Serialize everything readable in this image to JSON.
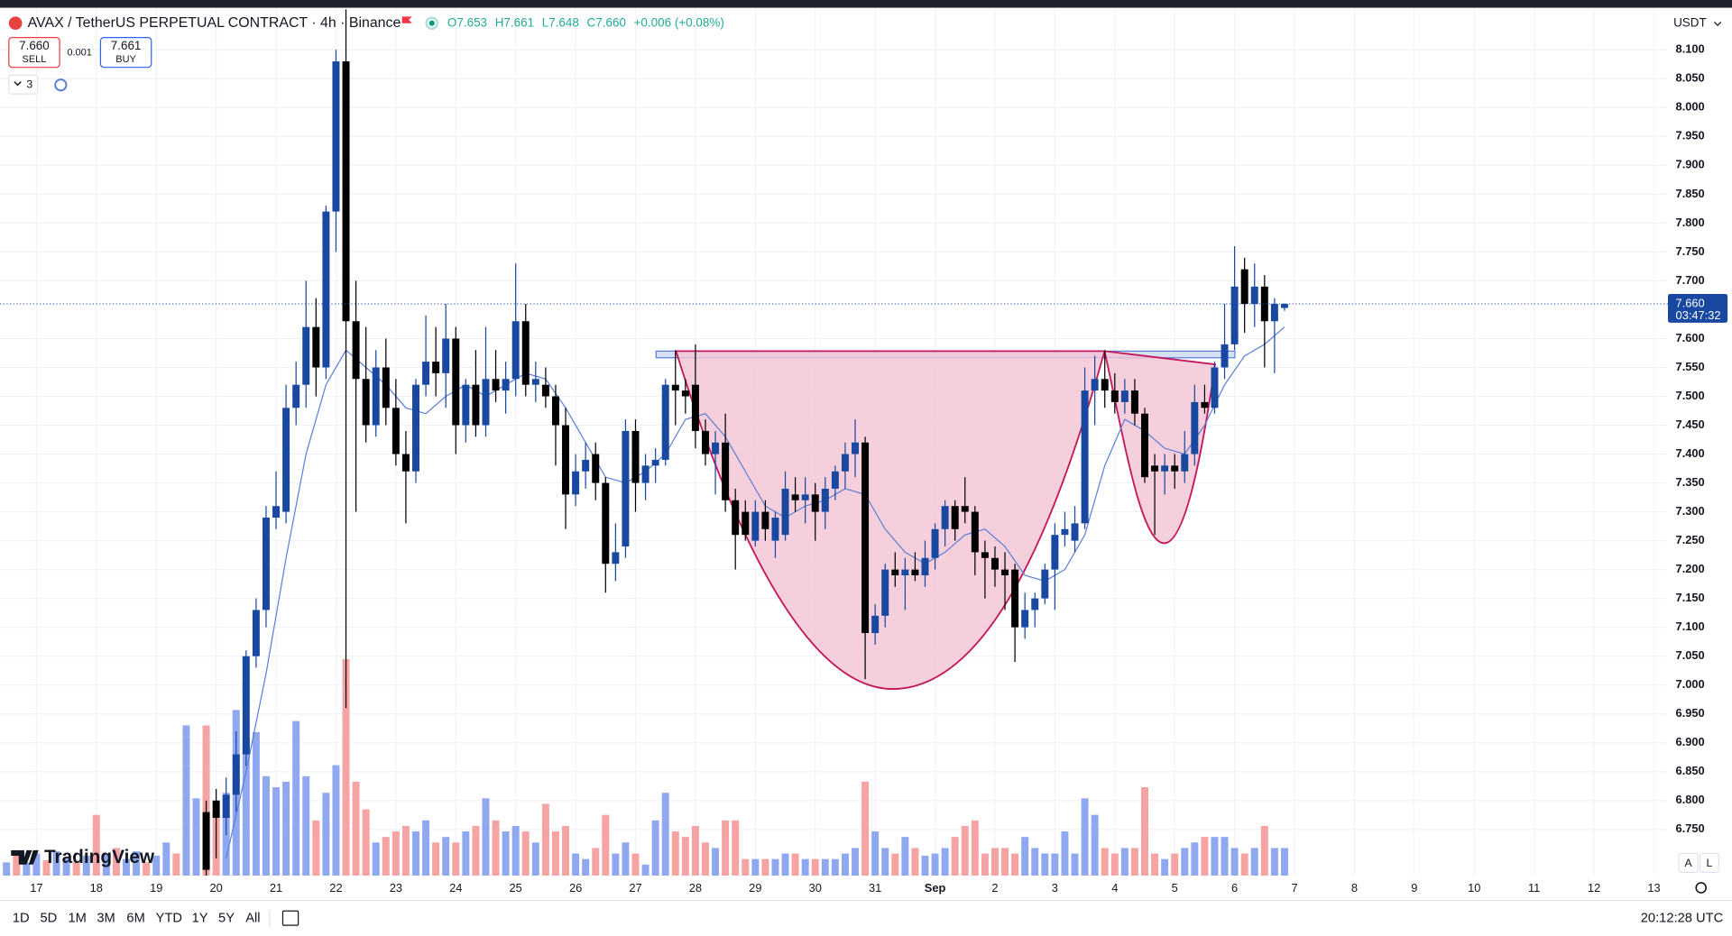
{
  "header": {
    "title": "AVAX / TetherUS PERPETUAL CONTRACT · 4h · Binance",
    "ohlc": [
      "O7.653",
      "H7.661",
      "L7.648",
      "C7.660",
      "+0.006 (+0.08%)"
    ],
    "sell_price": "7.660",
    "sell": "SELL",
    "spread": "0.001",
    "buy_price": "7.661",
    "buy": "BUY",
    "indicators": "3",
    "currency": "USDT",
    "logo": "TradingView",
    "scale_buttons": [
      "A",
      "L"
    ]
  },
  "toolbar": {
    "ranges": [
      "1D",
      "5D",
      "1M",
      "3M",
      "6M",
      "YTD",
      "1Y",
      "5Y",
      "All"
    ],
    "clock": "20:12:28 UTC"
  },
  "chart_data": {
    "type": "candlestick",
    "up_color": "#1848a0",
    "down_color": "#000000",
    "xlim": [
      -3.65,
      163.4
    ],
    "ylim": [
      6.67,
      8.171
    ],
    "grid": true,
    "xticks": [
      {
        "value": 0,
        "label": "17"
      },
      {
        "value": 6,
        "label": "18"
      },
      {
        "value": 12,
        "label": "19"
      },
      {
        "value": 18,
        "label": "20"
      },
      {
        "value": 24,
        "label": "21"
      },
      {
        "value": 30,
        "label": "22"
      },
      {
        "value": 36,
        "label": "23"
      },
      {
        "value": 42,
        "label": "24"
      },
      {
        "value": 48,
        "label": "25"
      },
      {
        "value": 54,
        "label": "26"
      },
      {
        "value": 60,
        "label": "27"
      },
      {
        "value": 66,
        "label": "28"
      },
      {
        "value": 72,
        "label": "29"
      },
      {
        "value": 78,
        "label": "30"
      },
      {
        "value": 84,
        "label": "31"
      },
      {
        "value": 90,
        "label": "Sep"
      },
      {
        "value": 96,
        "label": "2"
      },
      {
        "value": 102,
        "label": "3"
      },
      {
        "value": 108,
        "label": "4"
      },
      {
        "value": 114,
        "label": "5"
      },
      {
        "value": 120,
        "label": "6"
      },
      {
        "value": 126,
        "label": "7"
      },
      {
        "value": 132,
        "label": "8"
      },
      {
        "value": 138,
        "label": "9"
      },
      {
        "value": 144,
        "label": "10"
      },
      {
        "value": 150,
        "label": "11"
      },
      {
        "value": 156,
        "label": "12"
      },
      {
        "value": 162,
        "label": "13"
      }
    ],
    "yticks": [
      {
        "value": 8.1,
        "label": "8.100"
      },
      {
        "value": 8.05,
        "label": "8.050"
      },
      {
        "value": 8.0,
        "label": "8.000"
      },
      {
        "value": 7.95,
        "label": "7.950"
      },
      {
        "value": 7.9,
        "label": "7.900"
      },
      {
        "value": 7.85,
        "label": "7.850"
      },
      {
        "value": 7.8,
        "label": "7.800"
      },
      {
        "value": 7.75,
        "label": "7.750"
      },
      {
        "value": 7.7,
        "label": "7.700"
      },
      {
        "value": 7.6,
        "label": "7.600"
      },
      {
        "value": 7.55,
        "label": "7.550"
      },
      {
        "value": 7.5,
        "label": "7.500"
      },
      {
        "value": 7.45,
        "label": "7.450"
      },
      {
        "value": 7.4,
        "label": "7.400"
      },
      {
        "value": 7.35,
        "label": "7.350"
      },
      {
        "value": 7.3,
        "label": "7.300"
      },
      {
        "value": 7.25,
        "label": "7.250"
      },
      {
        "value": 7.2,
        "label": "7.200"
      },
      {
        "value": 7.15,
        "label": "7.150"
      },
      {
        "value": 7.1,
        "label": "7.100"
      },
      {
        "value": 7.05,
        "label": "7.050"
      },
      {
        "value": 7.0,
        "label": "7.000"
      },
      {
        "value": 6.95,
        "label": "6.950"
      },
      {
        "value": 6.9,
        "label": "6.900"
      },
      {
        "value": 6.85,
        "label": "6.850"
      },
      {
        "value": 6.8,
        "label": "6.800"
      },
      {
        "value": 6.75,
        "label": "6.750"
      }
    ],
    "last_price": {
      "value": 7.66,
      "label": "7.660"
    },
    "countdown": "03:47:32",
    "x": [
      17,
      18,
      19,
      20,
      21,
      22,
      23,
      24,
      25,
      26,
      27,
      28,
      29,
      30,
      31,
      32,
      33,
      34,
      35,
      36,
      37,
      38,
      39,
      40,
      41,
      42,
      43,
      44,
      45,
      46,
      47,
      48,
      49,
      50,
      51,
      52,
      53,
      54,
      55,
      56,
      57,
      58,
      59,
      60,
      61,
      62,
      63,
      64,
      65,
      66,
      67,
      68,
      69,
      70,
      71,
      72,
      73,
      74,
      75,
      76,
      77,
      78,
      79,
      80,
      81,
      82,
      83,
      84,
      85,
      86,
      87,
      88,
      89,
      90,
      91,
      92,
      93,
      94,
      95,
      96,
      97,
      98,
      99,
      100,
      101,
      102,
      103,
      104,
      105,
      106,
      107,
      108,
      109,
      110,
      111,
      112,
      113,
      114,
      115,
      116,
      117,
      118,
      119,
      120,
      121,
      122,
      123,
      124,
      125
    ],
    "open": [
      6.78,
      6.8,
      6.77,
      6.81,
      6.88,
      7.05,
      7.13,
      7.29,
      7.3,
      7.48,
      7.52,
      7.62,
      7.55,
      7.82,
      8.08,
      7.63,
      7.53,
      7.45,
      7.55,
      7.48,
      7.4,
      7.37,
      7.52,
      7.56,
      7.54,
      7.6,
      7.45,
      7.52,
      7.45,
      7.53,
      7.51,
      7.53,
      7.63,
      7.52,
      7.52,
      7.5,
      7.45,
      7.33,
      7.37,
      7.4,
      7.35,
      7.21,
      7.24,
      7.44,
      7.35,
      7.38,
      7.39,
      7.52,
      7.51,
      7.52,
      7.44,
      7.4,
      7.42,
      7.32,
      7.3,
      7.25,
      7.3,
      7.25,
      7.26,
      7.33,
      7.32,
      7.33,
      7.3,
      7.34,
      7.37,
      7.4,
      7.42,
      7.09,
      7.12,
      7.2,
      7.19,
      7.2,
      7.19,
      7.22,
      7.27,
      7.31,
      7.31,
      7.3,
      7.23,
      7.22,
      7.2,
      7.2,
      7.1,
      7.13,
      7.15,
      7.2,
      7.26,
      7.25,
      7.28,
      7.51,
      7.53,
      7.51,
      7.49,
      7.51,
      7.47,
      7.38,
      7.37,
      7.38,
      7.37,
      7.4,
      7.49,
      7.48,
      7.55,
      7.59,
      7.72,
      7.66,
      7.69,
      7.63,
      7.653
    ],
    "high": [
      6.8,
      6.82,
      6.84,
      6.92,
      7.06,
      7.15,
      7.31,
      7.37,
      7.52,
      7.56,
      7.7,
      7.67,
      7.83,
      8.1,
      8.17,
      7.7,
      7.62,
      7.58,
      7.6,
      7.53,
      7.44,
      7.53,
      7.64,
      7.62,
      7.66,
      7.62,
      7.53,
      7.58,
      7.62,
      7.58,
      7.56,
      7.73,
      7.66,
      7.56,
      7.55,
      7.52,
      7.48,
      7.4,
      7.42,
      7.42,
      7.36,
      7.28,
      7.46,
      7.46,
      7.4,
      7.41,
      7.53,
      7.58,
      7.53,
      7.59,
      7.46,
      7.44,
      7.47,
      7.34,
      7.32,
      7.32,
      7.32,
      7.3,
      7.37,
      7.36,
      7.36,
      7.35,
      7.36,
      7.38,
      7.42,
      7.46,
      7.43,
      7.14,
      7.21,
      7.23,
      7.22,
      7.23,
      7.25,
      7.28,
      7.32,
      7.32,
      7.36,
      7.31,
      7.25,
      7.24,
      7.23,
      7.21,
      7.16,
      7.16,
      7.21,
      7.28,
      7.3,
      7.31,
      7.55,
      7.57,
      7.58,
      7.54,
      7.53,
      7.53,
      7.48,
      7.4,
      7.4,
      7.4,
      7.44,
      7.52,
      7.52,
      7.56,
      7.66,
      7.76,
      7.74,
      7.73,
      7.71,
      7.67,
      7.661
    ],
    "low": [
      6.66,
      6.7,
      6.74,
      6.78,
      6.86,
      7.03,
      7.1,
      7.27,
      7.28,
      7.45,
      7.48,
      7.5,
      7.53,
      7.75,
      6.96,
      7.3,
      7.42,
      7.43,
      7.45,
      7.38,
      7.28,
      7.35,
      7.5,
      7.5,
      7.48,
      7.4,
      7.42,
      7.43,
      7.43,
      7.49,
      7.47,
      7.5,
      7.5,
      7.49,
      7.48,
      7.38,
      7.27,
      7.31,
      7.34,
      7.32,
      7.16,
      7.18,
      7.22,
      7.3,
      7.32,
      7.35,
      7.38,
      7.45,
      7.47,
      7.41,
      7.38,
      7.33,
      7.3,
      7.2,
      7.25,
      7.24,
      7.25,
      7.22,
      7.25,
      7.3,
      7.28,
      7.25,
      7.27,
      7.32,
      7.34,
      7.36,
      7.01,
      7.07,
      7.1,
      7.17,
      7.13,
      7.18,
      7.17,
      7.2,
      7.24,
      7.25,
      7.28,
      7.19,
      7.15,
      7.17,
      7.13,
      7.04,
      7.08,
      7.1,
      7.14,
      7.13,
      7.24,
      7.23,
      7.27,
      7.45,
      7.48,
      7.47,
      7.47,
      7.45,
      7.35,
      7.26,
      7.33,
      7.34,
      7.35,
      7.38,
      7.47,
      7.47,
      7.53,
      7.58,
      7.61,
      7.62,
      7.55,
      7.54,
      7.648
    ],
    "close": [
      6.68,
      6.77,
      6.81,
      6.88,
      7.05,
      7.13,
      7.29,
      7.31,
      7.48,
      7.52,
      7.62,
      7.55,
      7.82,
      8.08,
      7.63,
      7.53,
      7.45,
      7.55,
      7.48,
      7.4,
      7.37,
      7.52,
      7.56,
      7.54,
      7.6,
      7.45,
      7.52,
      7.45,
      7.53,
      7.51,
      7.53,
      7.63,
      7.52,
      7.53,
      7.5,
      7.45,
      7.33,
      7.37,
      7.39,
      7.35,
      7.21,
      7.23,
      7.44,
      7.35,
      7.38,
      7.39,
      7.52,
      7.51,
      7.5,
      7.44,
      7.4,
      7.42,
      7.32,
      7.26,
      7.26,
      7.3,
      7.27,
      7.29,
      7.34,
      7.32,
      7.33,
      7.3,
      7.34,
      7.37,
      7.4,
      7.42,
      7.09,
      7.12,
      7.2,
      7.19,
      7.2,
      7.19,
      7.22,
      7.27,
      7.31,
      7.27,
      7.3,
      7.23,
      7.22,
      7.2,
      7.19,
      7.1,
      7.13,
      7.15,
      7.2,
      7.26,
      7.27,
      7.28,
      7.51,
      7.53,
      7.51,
      7.49,
      7.51,
      7.47,
      7.36,
      7.37,
      7.38,
      7.37,
      7.4,
      7.49,
      7.48,
      7.55,
      7.59,
      7.69,
      7.66,
      7.69,
      7.63,
      7.66,
      7.66
    ],
    "ma": {
      "color": "#5b7fd6",
      "x": [
        19,
        21,
        23,
        25,
        27,
        29,
        31,
        33,
        35,
        37,
        39,
        41,
        43,
        45,
        47,
        49,
        51,
        53,
        55,
        57,
        59,
        61,
        63,
        65,
        67,
        69,
        71,
        73,
        75,
        77,
        79,
        81,
        83,
        85,
        87,
        89,
        91,
        93,
        95,
        97,
        99,
        101,
        103,
        105,
        107,
        109,
        111,
        113,
        115,
        117,
        119,
        121,
        123,
        125
      ],
      "values": [
        6.7,
        6.85,
        7.02,
        7.22,
        7.4,
        7.52,
        7.58,
        7.55,
        7.52,
        7.48,
        7.47,
        7.5,
        7.52,
        7.5,
        7.52,
        7.54,
        7.53,
        7.48,
        7.42,
        7.36,
        7.35,
        7.37,
        7.4,
        7.46,
        7.47,
        7.43,
        7.37,
        7.31,
        7.29,
        7.31,
        7.32,
        7.34,
        7.33,
        7.27,
        7.23,
        7.21,
        7.23,
        7.26,
        7.27,
        7.24,
        7.19,
        7.18,
        7.2,
        7.26,
        7.38,
        7.46,
        7.44,
        7.41,
        7.4,
        7.45,
        7.52,
        7.57,
        7.59,
        7.62
      ]
    },
    "volume": {
      "lim": [
        0,
        785
      ],
      "x": [
        -3,
        -2,
        -1,
        0,
        1,
        2,
        3,
        4,
        5,
        6,
        7,
        8,
        9,
        10,
        11,
        12,
        13,
        14,
        15,
        16,
        17,
        18,
        19,
        20,
        21,
        22,
        23,
        24,
        25,
        26,
        27,
        28,
        29,
        30,
        31,
        32,
        33,
        34,
        35,
        36,
        37,
        38,
        39,
        40,
        41,
        42,
        43,
        44,
        45,
        46,
        47,
        48,
        49,
        50,
        51,
        52,
        53,
        54,
        55,
        56,
        57,
        58,
        59,
        60,
        61,
        62,
        63,
        64,
        65,
        66,
        67,
        68,
        69,
        70,
        71,
        72,
        73,
        74,
        75,
        76,
        77,
        78,
        79,
        80,
        81,
        82,
        83,
        84,
        85,
        86,
        87,
        88,
        89,
        90,
        91,
        92,
        93,
        94,
        95,
        96,
        97,
        98,
        99,
        100,
        101,
        102,
        103,
        104,
        105,
        106,
        107,
        108,
        109,
        110,
        111,
        112,
        113,
        114,
        115,
        116,
        117,
        118,
        119,
        120,
        121,
        122,
        123,
        124,
        125
      ],
      "values": [
        12,
        18,
        12,
        20,
        14,
        22,
        16,
        12,
        18,
        55,
        20,
        25,
        15,
        22,
        12,
        18,
        30,
        20,
        136,
        70,
        136,
        55,
        75,
        150,
        125,
        130,
        90,
        80,
        85,
        140,
        90,
        50,
        75,
        100,
        196,
        85,
        60,
        30,
        35,
        40,
        45,
        40,
        50,
        30,
        35,
        30,
        40,
        45,
        70,
        50,
        40,
        45,
        40,
        30,
        65,
        40,
        45,
        20,
        15,
        25,
        55,
        20,
        30,
        20,
        10,
        50,
        75,
        40,
        35,
        45,
        30,
        25,
        50,
        50,
        15,
        15,
        15,
        15,
        20,
        20,
        15,
        15,
        15,
        15,
        20,
        25,
        85,
        40,
        25,
        20,
        35,
        25,
        18,
        20,
        25,
        35,
        45,
        50,
        20,
        25,
        25,
        20,
        35,
        25,
        20,
        20,
        40,
        20,
        70,
        55,
        25,
        20,
        25,
        25,
        80,
        20,
        15,
        20,
        25,
        30,
        35,
        35,
        35,
        25,
        20,
        25,
        45,
        25,
        25
      ],
      "colors": [
        "#90a8f0",
        "#f5a3a3",
        "#90a8f0",
        "#90a8f0",
        "#f5a3a3",
        "#90a8f0",
        "#90a8f0",
        "#f5a3a3",
        "#90a8f0",
        "#f5a3a3",
        "#90a8f0",
        "#f5a3a3",
        "#90a8f0",
        "#90a8f0",
        "#f5a3a3",
        "#90a8f0",
        "#90a8f0",
        "#f5a3a3",
        "#90a8f0",
        "#90a8f0",
        "#f5a3a3",
        "#f5a3a3",
        "#90a8f0",
        "#90a8f0",
        "#90a8f0",
        "#90a8f0",
        "#90a8f0",
        "#90a8f0",
        "#90a8f0",
        "#90a8f0",
        "#90a8f0",
        "#f5a3a3",
        "#90a8f0",
        "#90a8f0",
        "#f5a3a3",
        "#f5a3a3",
        "#f5a3a3",
        "#90a8f0",
        "#f5a3a3",
        "#f5a3a3",
        "#f5a3a3",
        "#90a8f0",
        "#90a8f0",
        "#f5a3a3",
        "#90a8f0",
        "#f5a3a3",
        "#90a8f0",
        "#f5a3a3",
        "#90a8f0",
        "#f5a3a3",
        "#90a8f0",
        "#90a8f0",
        "#f5a3a3",
        "#90a8f0",
        "#f5a3a3",
        "#f5a3a3",
        "#f5a3a3",
        "#90a8f0",
        "#90a8f0",
        "#f5a3a3",
        "#f5a3a3",
        "#90a8f0",
        "#90a8f0",
        "#f5a3a3",
        "#90a8f0",
        "#90a8f0",
        "#90a8f0",
        "#f5a3a3",
        "#f5a3a3",
        "#f5a3a3",
        "#f5a3a3",
        "#90a8f0",
        "#f5a3a3",
        "#f5a3a3",
        "#f5a3a3",
        "#90a8f0",
        "#f5a3a3",
        "#90a8f0",
        "#90a8f0",
        "#f5a3a3",
        "#90a8f0",
        "#f5a3a3",
        "#90a8f0",
        "#90a8f0",
        "#90a8f0",
        "#90a8f0",
        "#f5a3a3",
        "#90a8f0",
        "#90a8f0",
        "#f5a3a3",
        "#90a8f0",
        "#f5a3a3",
        "#90a8f0",
        "#90a8f0",
        "#90a8f0",
        "#f5a3a3",
        "#f5a3a3",
        "#f5a3a3",
        "#f5a3a3",
        "#f5a3a3",
        "#f5a3a3",
        "#f5a3a3",
        "#90a8f0",
        "#90a8f0",
        "#90a8f0",
        "#90a8f0",
        "#90a8f0",
        "#90a8f0",
        "#90a8f0",
        "#90a8f0",
        "#f5a3a3",
        "#f5a3a3",
        "#90a8f0",
        "#f5a3a3",
        "#f5a3a3",
        "#f5a3a3",
        "#90a8f0",
        "#f5a3a3",
        "#90a8f0",
        "#90a8f0",
        "#f5a3a3",
        "#90a8f0",
        "#90a8f0",
        "#90a8f0",
        "#f5a3a3",
        "#90a8f0",
        "#f5a3a3",
        "#90a8f0",
        "#90a8f0"
      ]
    }
  }
}
